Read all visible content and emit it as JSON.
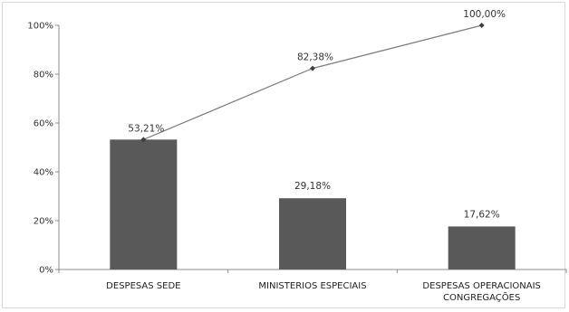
{
  "chart_data": {
    "type": "bar",
    "categories": [
      [
        "DESPESAS SEDE"
      ],
      [
        "MINISTERIOS ESPECIAIS"
      ],
      [
        "DESPESAS OPERACIONAIS",
        "CONGREGAÇÕES"
      ]
    ],
    "series": [
      {
        "type": "bar",
        "values": [
          53.21,
          29.18,
          17.62
        ],
        "labels": [
          "53,21%",
          "29,18%",
          "17,62%"
        ],
        "color": "#595959"
      },
      {
        "type": "line",
        "values": [
          53.21,
          82.38,
          100.0
        ],
        "labels": [
          "53,21%",
          "82,38%",
          "100,00%"
        ],
        "color": "#808080"
      }
    ],
    "y_ticks": [
      "0%",
      "20%",
      "40%",
      "60%",
      "80%",
      "100%"
    ],
    "ylim": [
      0,
      100
    ],
    "grid": false,
    "legend": false
  }
}
